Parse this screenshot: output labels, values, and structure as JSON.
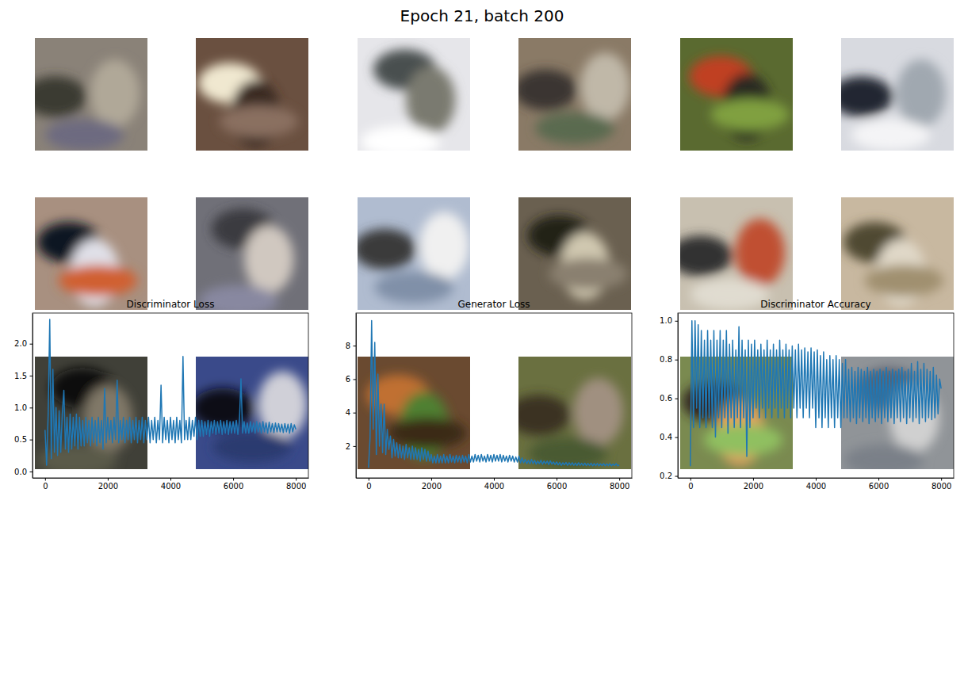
{
  "title": "Epoch 21, batch 200",
  "chart_data": [
    {
      "type": "line",
      "title": "Discriminator Loss",
      "color": "#1f77b4",
      "xlim": [
        -400,
        8400
      ],
      "ylim": [
        -0.1,
        2.48
      ],
      "xticks": [
        0,
        2000,
        4000,
        6000,
        8000
      ],
      "yticks": [
        {
          "value": 0,
          "label": "0.0"
        },
        0.5,
        {
          "value": 1,
          "label": "1.0"
        },
        1.5,
        {
          "value": 2,
          "label": "2.0"
        }
      ],
      "x": [
        0,
        50,
        100,
        150,
        200,
        250,
        300,
        350,
        400,
        450,
        500,
        550,
        600,
        650,
        700,
        750,
        800,
        850,
        900,
        950,
        1000,
        1050,
        1100,
        1150,
        1200,
        1250,
        1300,
        1350,
        1400,
        1450,
        1500,
        1550,
        1600,
        1650,
        1700,
        1750,
        1800,
        1850,
        1900,
        1950,
        2000,
        2050,
        2100,
        2150,
        2200,
        2250,
        2300,
        2350,
        2400,
        2450,
        2500,
        2550,
        2600,
        2650,
        2700,
        2750,
        2800,
        2850,
        2900,
        2950,
        3000,
        3050,
        3100,
        3150,
        3200,
        3250,
        3300,
        3350,
        3400,
        3450,
        3500,
        3550,
        3600,
        3650,
        3700,
        3750,
        3800,
        3850,
        3900,
        3950,
        4000,
        4050,
        4100,
        4150,
        4200,
        4250,
        4300,
        4350,
        4400,
        4450,
        4500,
        4550,
        4600,
        4650,
        4700,
        4750,
        4800,
        4850,
        4900,
        4950,
        5000,
        5050,
        5100,
        5150,
        5200,
        5250,
        5300,
        5350,
        5400,
        5450,
        5500,
        5550,
        5600,
        5650,
        5700,
        5750,
        5800,
        5850,
        5900,
        5950,
        6000,
        6050,
        6100,
        6150,
        6200,
        6250,
        6300,
        6350,
        6400,
        6450,
        6500,
        6550,
        6600,
        6650,
        6700,
        6750,
        6800,
        6850,
        6900,
        6950,
        7000,
        7050,
        7100,
        7150,
        7200,
        7250,
        7300,
        7350,
        7400,
        7450,
        7500,
        7550,
        7600,
        7650,
        7700,
        7750,
        7800,
        7850,
        7900,
        7950,
        8000
      ],
      "values": [
        0.65,
        0.1,
        0.9,
        2.38,
        0.2,
        1.6,
        0.3,
        1.0,
        0.25,
        0.95,
        0.3,
        0.9,
        1.27,
        0.35,
        0.85,
        0.3,
        0.9,
        0.35,
        0.85,
        0.4,
        0.9,
        0.35,
        0.85,
        0.4,
        0.8,
        0.4,
        0.85,
        0.45,
        0.8,
        0.4,
        0.85,
        0.45,
        0.8,
        0.4,
        0.85,
        0.45,
        0.8,
        0.35,
        1.3,
        0.45,
        0.85,
        0.5,
        0.8,
        0.45,
        0.85,
        0.5,
        1.43,
        0.45,
        0.8,
        0.5,
        0.85,
        0.45,
        0.8,
        0.5,
        0.85,
        0.45,
        0.8,
        0.5,
        0.85,
        0.45,
        0.8,
        0.5,
        0.85,
        0.45,
        0.8,
        0.5,
        0.85,
        0.45,
        0.8,
        0.5,
        0.85,
        0.45,
        0.8,
        0.5,
        1.35,
        0.45,
        0.85,
        0.5,
        0.8,
        0.45,
        0.85,
        0.5,
        0.8,
        0.45,
        0.85,
        0.5,
        0.8,
        0.45,
        1.8,
        0.5,
        0.8,
        0.5,
        0.85,
        0.5,
        0.8,
        0.55,
        0.85,
        0.5,
        0.8,
        0.55,
        0.8,
        0.55,
        0.78,
        0.58,
        0.8,
        0.55,
        0.78,
        0.6,
        0.8,
        0.58,
        0.78,
        0.6,
        0.8,
        0.58,
        0.78,
        0.6,
        0.8,
        0.58,
        0.78,
        0.6,
        0.78,
        0.6,
        0.8,
        0.58,
        0.78,
        1.45,
        0.6,
        0.78,
        0.6,
        0.76,
        0.6,
        0.78,
        0.62,
        0.76,
        0.6,
        0.78,
        0.62,
        0.76,
        0.6,
        0.78,
        0.62,
        0.76,
        0.6,
        0.77,
        0.62,
        0.75,
        0.61,
        0.76,
        0.62,
        0.75,
        0.62,
        0.74,
        0.61,
        0.75,
        0.62,
        0.74,
        0.6,
        0.75,
        0.62,
        0.73,
        0.66
      ]
    },
    {
      "type": "line",
      "title": "Generator Loss",
      "color": "#1f77b4",
      "xlim": [
        -400,
        8400
      ],
      "ylim": [
        0.1,
        9.95
      ],
      "xticks": [
        0,
        2000,
        4000,
        6000,
        8000
      ],
      "yticks": [
        2,
        4,
        6,
        8
      ],
      "x": [
        0,
        50,
        100,
        150,
        200,
        250,
        300,
        350,
        400,
        450,
        500,
        550,
        600,
        650,
        700,
        750,
        800,
        850,
        900,
        950,
        1000,
        1050,
        1100,
        1150,
        1200,
        1250,
        1300,
        1350,
        1400,
        1450,
        1500,
        1550,
        1600,
        1650,
        1700,
        1750,
        1800,
        1850,
        1900,
        1950,
        2000,
        2050,
        2100,
        2150,
        2200,
        2250,
        2300,
        2350,
        2400,
        2450,
        2500,
        2550,
        2600,
        2650,
        2700,
        2750,
        2800,
        2850,
        2900,
        2950,
        3000,
        3050,
        3100,
        3150,
        3200,
        3250,
        3300,
        3350,
        3400,
        3450,
        3500,
        3550,
        3600,
        3650,
        3700,
        3750,
        3800,
        3850,
        3900,
        3950,
        4000,
        4050,
        4100,
        4150,
        4200,
        4250,
        4300,
        4350,
        4400,
        4450,
        4500,
        4550,
        4600,
        4650,
        4700,
        4750,
        4800,
        4850,
        4900,
        4950,
        5000,
        5050,
        5100,
        5150,
        5200,
        5250,
        5300,
        5350,
        5400,
        5450,
        5500,
        5550,
        5600,
        5650,
        5700,
        5750,
        5800,
        5850,
        5900,
        5950,
        6000,
        6050,
        6100,
        6150,
        6200,
        6250,
        6300,
        6350,
        6400,
        6450,
        6500,
        6550,
        6600,
        6650,
        6700,
        6750,
        6800,
        6850,
        6900,
        6950,
        7000,
        7050,
        7100,
        7150,
        7200,
        7250,
        7300,
        7350,
        7400,
        7450,
        7500,
        7550,
        7600,
        7650,
        7700,
        7750,
        7800,
        7850,
        7900,
        7950,
        8000
      ],
      "values": [
        0.7,
        2.5,
        9.5,
        3.0,
        8.2,
        1.5,
        6.3,
        2.0,
        4.5,
        1.6,
        4.5,
        1.5,
        3.0,
        1.8,
        2.6,
        1.3,
        2.4,
        1.4,
        2.2,
        1.3,
        2.1,
        1.3,
        2.0,
        1.2,
        2.1,
        1.3,
        1.9,
        1.2,
        2.0,
        1.2,
        1.9,
        1.2,
        1.8,
        1.1,
        1.9,
        1.2,
        1.8,
        1.1,
        1.7,
        1.1,
        1.5,
        1.0,
        1.4,
        1.0,
        1.5,
        1.0,
        1.4,
        1.0,
        1.5,
        1.0,
        1.4,
        1.0,
        1.5,
        1.05,
        1.4,
        1.0,
        1.45,
        1.05,
        1.4,
        1.0,
        1.45,
        1.05,
        1.4,
        1.0,
        1.5,
        1.05,
        1.4,
        1.05,
        1.5,
        1.1,
        1.45,
        1.05,
        1.5,
        1.1,
        1.4,
        1.05,
        1.5,
        1.1,
        1.45,
        1.05,
        1.5,
        1.1,
        1.45,
        1.1,
        1.5,
        1.05,
        1.45,
        1.1,
        1.4,
        1.05,
        1.45,
        1.1,
        1.4,
        1.05,
        1.35,
        1.05,
        1.4,
        1.0,
        1.3,
        1.0,
        1.2,
        0.95,
        1.15,
        0.95,
        1.2,
        0.95,
        1.15,
        0.92,
        1.1,
        0.95,
        1.15,
        0.92,
        1.1,
        0.95,
        1.1,
        0.9,
        1.12,
        0.92,
        1.05,
        0.9,
        1.05,
        0.88,
        1.02,
        0.85,
        1.0,
        0.88,
        1.02,
        0.85,
        1.0,
        0.86,
        1.0,
        0.85,
        0.98,
        0.84,
        1.0,
        0.85,
        0.97,
        0.84,
        0.98,
        0.83,
        0.96,
        0.84,
        0.97,
        0.82,
        0.95,
        0.83,
        0.96,
        0.82,
        0.94,
        0.83,
        0.95,
        0.82,
        0.94,
        0.83,
        0.95,
        0.82,
        0.93,
        0.83,
        0.95,
        0.82,
        0.88
      ]
    },
    {
      "type": "line",
      "title": "Discriminator Accuracy",
      "color": "#1f77b4",
      "xlim": [
        -400,
        8400
      ],
      "ylim": [
        0.19,
        1.04
      ],
      "xticks": [
        0,
        2000,
        4000,
        6000,
        8000
      ],
      "yticks": [
        0.2,
        0.4,
        0.6,
        0.8,
        {
          "value": 1,
          "label": "1.0"
        }
      ],
      "x": [
        0,
        50,
        100,
        150,
        200,
        250,
        300,
        350,
        400,
        450,
        500,
        550,
        600,
        650,
        700,
        750,
        800,
        850,
        900,
        950,
        1000,
        1050,
        1100,
        1150,
        1200,
        1250,
        1300,
        1350,
        1400,
        1450,
        1500,
        1550,
        1600,
        1650,
        1700,
        1750,
        1800,
        1850,
        1900,
        1950,
        2000,
        2050,
        2100,
        2150,
        2200,
        2250,
        2300,
        2350,
        2400,
        2450,
        2500,
        2550,
        2600,
        2650,
        2700,
        2750,
        2800,
        2850,
        2900,
        2950,
        3000,
        3050,
        3100,
        3150,
        3200,
        3250,
        3300,
        3350,
        3400,
        3450,
        3500,
        3550,
        3600,
        3650,
        3700,
        3750,
        3800,
        3850,
        3900,
        3950,
        4000,
        4050,
        4100,
        4150,
        4200,
        4250,
        4300,
        4350,
        4400,
        4450,
        4500,
        4550,
        4600,
        4650,
        4700,
        4750,
        4800,
        4850,
        4900,
        4950,
        5000,
        5050,
        5100,
        5150,
        5200,
        5250,
        5300,
        5350,
        5400,
        5450,
        5500,
        5550,
        5600,
        5650,
        5700,
        5750,
        5800,
        5850,
        5900,
        5950,
        6000,
        6050,
        6100,
        6150,
        6200,
        6250,
        6300,
        6350,
        6400,
        6450,
        6500,
        6550,
        6600,
        6650,
        6700,
        6750,
        6800,
        6850,
        6900,
        6950,
        7000,
        7050,
        7100,
        7150,
        7200,
        7250,
        7300,
        7350,
        7400,
        7450,
        7500,
        7550,
        7600,
        7650,
        7700,
        7750,
        7800,
        7850,
        7900,
        7950,
        8000
      ],
      "values": [
        0.25,
        1.0,
        0.45,
        1.0,
        0.55,
        0.98,
        0.45,
        0.95,
        0.5,
        0.9,
        0.45,
        0.95,
        0.5,
        0.9,
        0.45,
        0.95,
        0.4,
        0.9,
        0.5,
        0.95,
        0.45,
        0.9,
        0.5,
        0.95,
        0.42,
        0.88,
        0.5,
        0.9,
        0.45,
        0.85,
        0.5,
        0.97,
        0.45,
        0.9,
        0.5,
        0.85,
        0.3,
        0.9,
        0.45,
        0.88,
        0.5,
        0.9,
        0.55,
        0.85,
        0.5,
        0.88,
        0.55,
        0.85,
        0.5,
        0.9,
        0.55,
        0.85,
        0.5,
        0.88,
        0.55,
        0.85,
        0.5,
        0.9,
        0.55,
        0.85,
        0.5,
        0.88,
        0.55,
        0.85,
        0.5,
        0.87,
        0.55,
        0.85,
        0.5,
        0.88,
        0.55,
        0.85,
        0.5,
        0.86,
        0.55,
        0.84,
        0.5,
        0.86,
        0.55,
        0.84,
        0.45,
        0.85,
        0.5,
        0.82,
        0.45,
        0.84,
        0.5,
        0.8,
        0.45,
        0.82,
        0.5,
        0.8,
        0.45,
        0.82,
        0.5,
        0.8,
        0.45,
        0.78,
        0.5,
        0.8,
        0.5,
        0.75,
        0.48,
        0.76,
        0.5,
        0.74,
        0.47,
        0.76,
        0.5,
        0.75,
        0.48,
        0.74,
        0.5,
        0.76,
        0.47,
        0.74,
        0.5,
        0.75,
        0.48,
        0.74,
        0.5,
        0.75,
        0.47,
        0.74,
        0.5,
        0.76,
        0.48,
        0.74,
        0.5,
        0.75,
        0.47,
        0.74,
        0.5,
        0.75,
        0.48,
        0.76,
        0.5,
        0.74,
        0.47,
        0.75,
        0.5,
        0.78,
        0.48,
        0.74,
        0.5,
        0.79,
        0.47,
        0.75,
        0.5,
        0.78,
        0.48,
        0.75,
        0.5,
        0.74,
        0.49,
        0.76,
        0.5,
        0.72,
        0.52,
        0.7,
        0.65
      ]
    }
  ]
}
